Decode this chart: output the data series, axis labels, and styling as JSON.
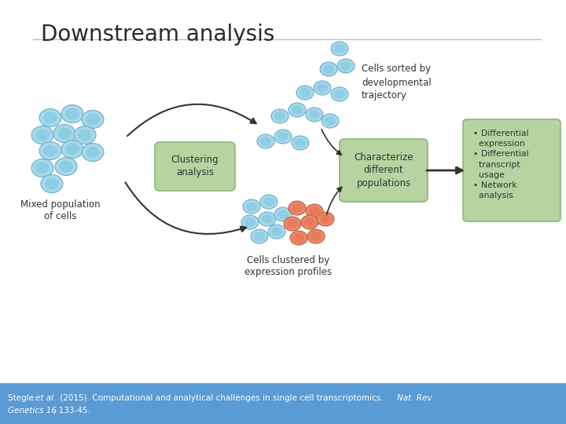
{
  "title": "Downstream analysis",
  "title_fontsize": 20,
  "bg_color": "#ffffff",
  "footer_bg_color": "#5b9bd5",
  "footer_text_line1": "Stegle ",
  "footer_text_italic1": "et al.",
  "footer_text_line1b": " (2015). Computational and analytical challenges in single cell transcriptomics. ",
  "footer_text_italic2": "Nat. Rev.",
  "footer_text_line2": "Genetics 16",
  "footer_text_line2b": ", 133-45.",
  "footer_text_color": "#ffffff",
  "cell_blue_face": "#a8d8ea",
  "cell_blue_edge": "#6ab0cc",
  "cell_blue_inner": "#7ec8e3",
  "cell_red_face": "#e8896a",
  "cell_red_edge": "#c06040",
  "cell_red_inner": "#e87050",
  "green_box_color": "#8ab87a",
  "green_box_edge": "#6a9a5a",
  "green_light_box_color": "#b5d4a0",
  "green_light_box_edge": "#8ab87a",
  "box_clustering": "Clustering\nanalysis",
  "box_characterize": "Characterize\ndifferent\npopulations",
  "box_results_lines": [
    "• Differential",
    "  expression",
    "• Differential",
    "  transcript",
    "  usage",
    "• Network",
    "  analysis"
  ],
  "label_mixed": "Mixed population\nof cells",
  "label_sorted": "Cells sorted by\ndevelopmental\ntrajectory",
  "label_clustered": "Cells clustered by\nexpression profiles",
  "arrow_color": "#333333"
}
